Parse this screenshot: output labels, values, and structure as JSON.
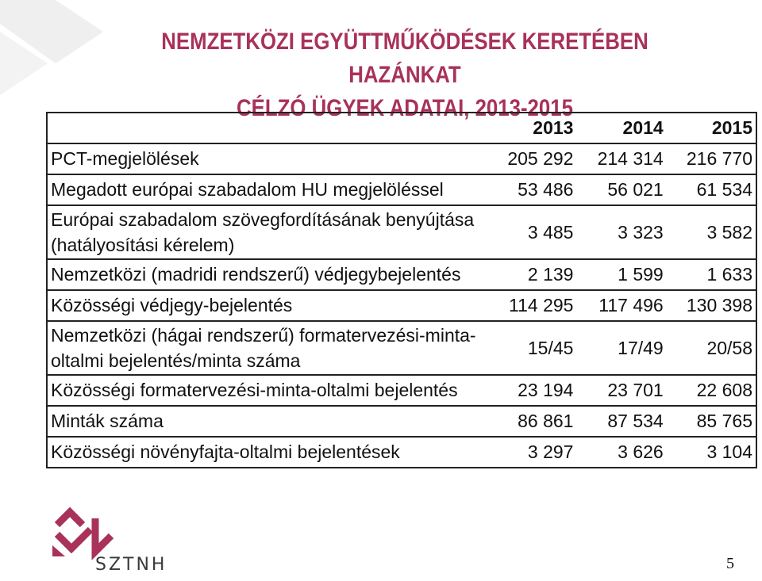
{
  "title": {
    "line1": "NEMZETKÖZI EGYÜTTMŰKÖDÉSEK KERETÉBEN HAZÁNKAT",
    "line2": "CÉLZÓ ÜGYEK ADATAI, 2013-2015"
  },
  "table": {
    "years": [
      "2013",
      "2014",
      "2015"
    ],
    "rows": [
      {
        "label": "PCT-megjelölések",
        "values": [
          "205 292",
          "214 314",
          "216 770"
        ]
      },
      {
        "label": "Megadott európai szabadalom HU megjelöléssel",
        "values": [
          "53 486",
          "56 021",
          "61 534"
        ]
      },
      {
        "label": "Európai szabadalom szövegfordításának benyújtása (hatályosítási kérelem)",
        "values": [
          "3 485",
          "3 323",
          "3 582"
        ]
      },
      {
        "label": "Nemzetközi (madridi rendszerű) védjegybejelentés",
        "values": [
          "2 139",
          "1 599",
          "1 633"
        ]
      },
      {
        "label": "Közösségi védjegy-bejelentés",
        "values": [
          "114 295",
          "117 496",
          "130 398"
        ]
      },
      {
        "label": "Nemzetközi (hágai rendszerű) formatervezési-minta-oltalmi bejelentés/minta száma",
        "values": [
          "15/45",
          "17/49",
          "20/58"
        ]
      },
      {
        "label": "Közösségi formatervezési-minta-oltalmi bejelentés",
        "values": [
          "23 194",
          "23 701",
          "22 608"
        ]
      },
      {
        "label": "Minták száma",
        "values": [
          "86 861",
          "87 534",
          "85 765"
        ]
      },
      {
        "label": "Közösségi növényfajta-oltalmi bejelentések",
        "values": [
          "3 297",
          "3 626",
          "3 104"
        ]
      }
    ]
  },
  "logo": {
    "text": "SZTNH"
  },
  "page_number": "5",
  "colors": {
    "title": "#a8325a",
    "logo": "#a8325a",
    "deco": "#ededed"
  }
}
